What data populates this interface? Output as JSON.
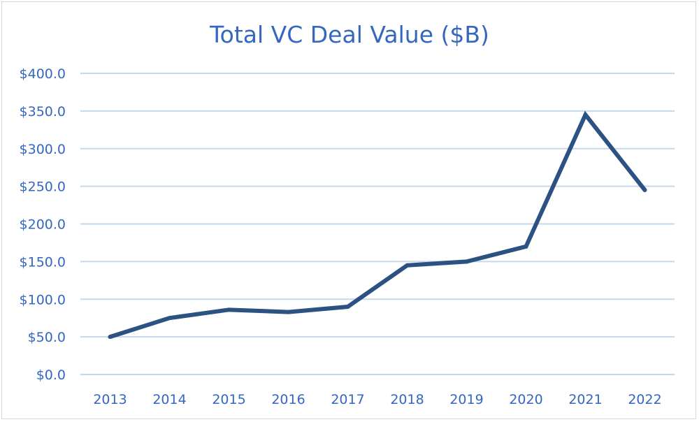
{
  "chart_data": {
    "type": "line",
    "title": "Total VC Deal Value ($B)",
    "xlabel": "",
    "ylabel": "",
    "x": [
      "2013",
      "2014",
      "2015",
      "2016",
      "2017",
      "2018",
      "2019",
      "2020",
      "2021",
      "2022"
    ],
    "series": [
      {
        "values": [
          50,
          75,
          86,
          83,
          90,
          145,
          150,
          170,
          345,
          245
        ]
      }
    ],
    "ylim": [
      0,
      400
    ],
    "yticks": [
      "$0.0",
      "$50.0",
      "$100.0",
      "$150.0",
      "$200.0",
      "$250.0",
      "$300.0",
      "$350.0",
      "$400.0"
    ],
    "grid": true,
    "legend": "none",
    "colors": {
      "line": "#2c5284",
      "text": "#3367c0",
      "grid": "#c5d7ea",
      "axis": "#c5d7ea"
    }
  }
}
